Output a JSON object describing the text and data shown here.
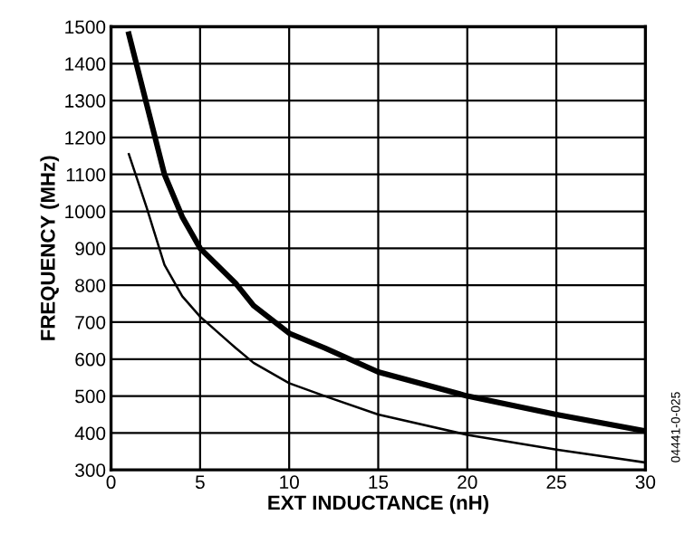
{
  "chart_data": {
    "type": "line",
    "xlabel": "EXT INDUCTANCE (nH)",
    "ylabel": "FREQUENCY (MHz)",
    "series": [
      {
        "color": "#000000",
        "x": [
          1,
          2,
          3,
          4,
          5,
          7,
          8,
          10,
          12,
          15,
          20,
          25,
          30
        ],
        "values": [
          1480,
          1290,
          1100,
          985,
          900,
          805,
          745,
          670,
          630,
          565,
          500,
          450,
          405
        ]
      },
      {
        "color": "#000000",
        "x": [
          1,
          2,
          3,
          4,
          5,
          7,
          8,
          10,
          12,
          15,
          20,
          25,
          30
        ],
        "values": [
          1155,
          1010,
          855,
          770,
          715,
          630,
          590,
          535,
          500,
          450,
          395,
          355,
          320
        ]
      }
    ],
    "xlim": [
      0,
      30
    ],
    "xticks": [
      0,
      5,
      10,
      15,
      20,
      25,
      30
    ],
    "ylim": [
      300,
      1500
    ],
    "yticks": [
      300,
      400,
      500,
      600,
      700,
      800,
      900,
      1000,
      1100,
      1200,
      1300,
      1400,
      1500
    ],
    "grid": true,
    "marker": "none",
    "line_style": "solid",
    "annotations": [
      "04441-0-025"
    ]
  }
}
